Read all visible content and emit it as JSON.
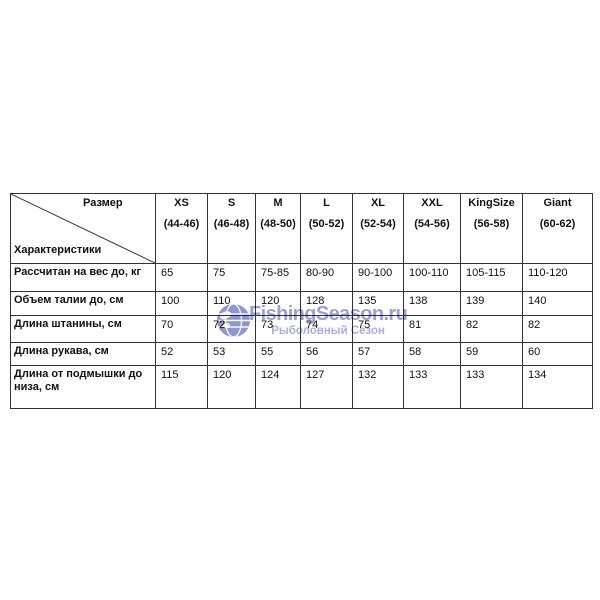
{
  "chart_data": {
    "type": "table",
    "corner": {
      "top_label": "Размер",
      "bottom_label": "Характеристики"
    },
    "columns": [
      {
        "size": "XS",
        "range": "(44-46)"
      },
      {
        "size": "S",
        "range": "(46-48)"
      },
      {
        "size": "M",
        "range": "(48-50)"
      },
      {
        "size": "L",
        "range": "(50-52)"
      },
      {
        "size": "XL",
        "range": "(52-54)"
      },
      {
        "size": "XXL",
        "range": "(54-56)"
      },
      {
        "size": "KingSize",
        "range": "(56-58)"
      },
      {
        "size": "Giant",
        "range": "(60-62)"
      }
    ],
    "rows": [
      {
        "label": "Рассчитан на вес до, кг",
        "values": [
          "65",
          "75",
          "75-85",
          "80-90",
          "90-100",
          "100-110",
          "105-115",
          "110-120"
        ]
      },
      {
        "label": "Объем талии до, см",
        "values": [
          "100",
          "110",
          "120",
          "128",
          "135",
          "138",
          "139",
          "140"
        ]
      },
      {
        "label": "Длина штанины, см",
        "values": [
          "70",
          "72",
          "73",
          "74",
          "75",
          "81",
          "82",
          "82"
        ]
      },
      {
        "label": "Длина рукава, см",
        "values": [
          "52",
          "53",
          "55",
          "56",
          "57",
          "58",
          "59",
          "60"
        ]
      },
      {
        "label": "Длина от подмышки до низа, см",
        "values": [
          "115",
          "120",
          "124",
          "127",
          "132",
          "133",
          "133",
          "134"
        ]
      }
    ]
  },
  "watermark": {
    "brand": "FishingSeason.ru",
    "tagline": "Рыболовный Сезон",
    "brand_color": "#8b90cb",
    "tagline_color": "#99a0d3",
    "globe_color": "#7d83c4"
  }
}
